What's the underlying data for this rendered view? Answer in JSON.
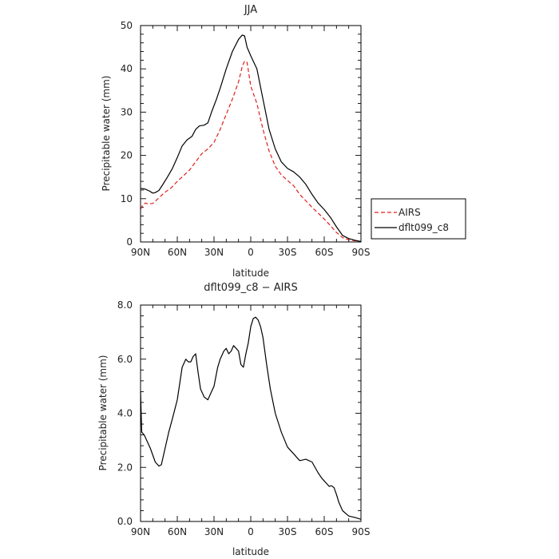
{
  "chart_data": [
    {
      "type": "line",
      "title": "JJA",
      "xlabel": "latitude",
      "ylabel": "Precipitable water  (mm)",
      "xlim": [
        90,
        -90
      ],
      "ylim": [
        0,
        50
      ],
      "xticks": [
        {
          "v": 90,
          "label": "90N"
        },
        {
          "v": 60,
          "label": "60N"
        },
        {
          "v": 30,
          "label": "30N"
        },
        {
          "v": 0,
          "label": "0"
        },
        {
          "v": -30,
          "label": "30S"
        },
        {
          "v": -60,
          "label": "60S"
        },
        {
          "v": -90,
          "label": "90S"
        }
      ],
      "yticks": [
        {
          "v": 0,
          "label": "0"
        },
        {
          "v": 10,
          "label": "10"
        },
        {
          "v": 20,
          "label": "20"
        },
        {
          "v": 30,
          "label": "30"
        },
        {
          "v": 40,
          "label": "40"
        },
        {
          "v": 50,
          "label": "50"
        }
      ],
      "legend": {
        "placement": "right",
        "entries": [
          "AIRS",
          "dflt099_c8"
        ]
      },
      "series": [
        {
          "name": "AIRS",
          "color": "#e0201c",
          "dash": true,
          "x": [
            90,
            88,
            86,
            84,
            80,
            75,
            70,
            65,
            60,
            55,
            50,
            45,
            40,
            35,
            30,
            25,
            20,
            15,
            10,
            7,
            5,
            3,
            0,
            -5,
            -10,
            -15,
            -20,
            -25,
            -30,
            -35,
            -40,
            -45,
            -50,
            -55,
            -60,
            -65,
            -70,
            -75,
            -80,
            -85,
            -90
          ],
          "y": [
            7.6,
            8.6,
            9.0,
            8.8,
            8.9,
            10.2,
            11.5,
            12.5,
            14.0,
            15.3,
            16.6,
            18.5,
            20.4,
            21.5,
            23.0,
            26.0,
            29.5,
            33.0,
            37.0,
            40.5,
            41.8,
            41.5,
            36.0,
            32.0,
            26.0,
            21.0,
            17.5,
            15.5,
            14.2,
            13.0,
            11.0,
            9.5,
            8.0,
            6.7,
            5.3,
            3.8,
            2.2,
            1.0,
            0.5,
            0.3,
            0.1
          ]
        },
        {
          "name": "dflt099_c8",
          "color": "#000000",
          "dash": false,
          "x": [
            90,
            86,
            83,
            80,
            78,
            75,
            72,
            68,
            64,
            60,
            56,
            52,
            48,
            45,
            42,
            38,
            35,
            32,
            28,
            25,
            20,
            15,
            10,
            7,
            5,
            3,
            0,
            -5,
            -10,
            -15,
            -20,
            -25,
            -30,
            -35,
            -40,
            -45,
            -50,
            -55,
            -60,
            -65,
            -70,
            -75,
            -80,
            -85,
            -90
          ],
          "y": [
            12.4,
            12.2,
            11.8,
            11.3,
            11.4,
            11.9,
            13.2,
            15.0,
            17.0,
            19.5,
            22.2,
            23.6,
            24.4,
            26.0,
            26.8,
            27.0,
            27.5,
            30.0,
            33.0,
            35.5,
            40.0,
            44.0,
            46.8,
            47.8,
            47.6,
            45.0,
            43.0,
            40.0,
            33.0,
            26.0,
            21.5,
            18.5,
            17.0,
            16.2,
            15.0,
            13.3,
            11.0,
            9.0,
            7.5,
            5.7,
            3.5,
            1.5,
            0.8,
            0.4,
            0.1
          ]
        }
      ]
    },
    {
      "type": "line",
      "title": "dflt099_c8 − AIRS",
      "xlabel": "latitude",
      "ylabel": "Precipitable water  (mm)",
      "xlim": [
        90,
        -90
      ],
      "ylim": [
        0,
        8
      ],
      "xticks": [
        {
          "v": 90,
          "label": "90N"
        },
        {
          "v": 60,
          "label": "60N"
        },
        {
          "v": 30,
          "label": "30N"
        },
        {
          "v": 0,
          "label": "0"
        },
        {
          "v": -30,
          "label": "30S"
        },
        {
          "v": -60,
          "label": "60S"
        },
        {
          "v": -90,
          "label": "90S"
        }
      ],
      "yticks": [
        {
          "v": 0,
          "label": "0.0"
        },
        {
          "v": 2,
          "label": "2.0"
        },
        {
          "v": 4,
          "label": "4.0"
        },
        {
          "v": 6,
          "label": "6.0"
        },
        {
          "v": 8,
          "label": "8.0"
        }
      ],
      "series": [
        {
          "name": "dflt099_c8 − AIRS",
          "color": "#000000",
          "dash": false,
          "x": [
            90,
            89,
            87,
            85,
            82,
            78,
            75,
            73,
            72,
            70,
            67,
            64,
            60,
            56,
            53,
            51,
            49,
            47,
            45,
            43,
            41,
            38,
            35,
            32,
            30,
            27,
            25,
            22,
            20,
            18,
            16,
            14,
            12,
            10,
            8,
            6,
            4,
            2,
            0,
            -2,
            -4,
            -6,
            -8,
            -10,
            -13,
            -16,
            -20,
            -25,
            -30,
            -35,
            -40,
            -45,
            -50,
            -55,
            -58,
            -60,
            -62,
            -64,
            -66,
            -68,
            -70,
            -72,
            -75,
            -80,
            -85,
            -90
          ],
          "y": [
            4.8,
            3.3,
            3.2,
            3.0,
            2.7,
            2.2,
            2.05,
            2.1,
            2.3,
            2.7,
            3.3,
            3.8,
            4.5,
            5.7,
            6.0,
            5.9,
            5.9,
            6.1,
            6.2,
            5.5,
            4.9,
            4.6,
            4.5,
            4.8,
            5.0,
            5.7,
            6.0,
            6.3,
            6.4,
            6.2,
            6.3,
            6.5,
            6.4,
            6.3,
            5.8,
            5.7,
            6.2,
            6.6,
            7.2,
            7.5,
            7.55,
            7.45,
            7.2,
            6.8,
            5.8,
            4.9,
            4.0,
            3.3,
            2.75,
            2.5,
            2.25,
            2.3,
            2.2,
            1.8,
            1.6,
            1.5,
            1.4,
            1.3,
            1.32,
            1.25,
            1.0,
            0.7,
            0.4,
            0.2,
            0.15,
            0.08
          ]
        }
      ]
    }
  ]
}
